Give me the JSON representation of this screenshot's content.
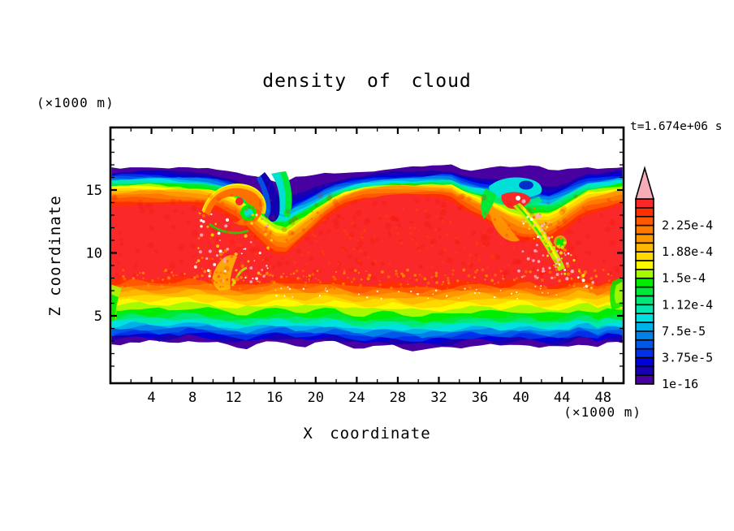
{
  "page": {
    "title": "density of cloud",
    "timestamp": "t=1.674e+06 s"
  },
  "axes": {
    "x_label": "X coordinate",
    "z_label": "Z coordinate",
    "x_unit": "(×1000 m)",
    "z_unit": "(×1000 m)"
  },
  "chart_data": {
    "type": "heatmap",
    "title": "density of cloud",
    "xlabel": "X coordinate",
    "ylabel": "Z coordinate",
    "x_unit": "(×1000 m)",
    "y_unit": "(×1000 m)",
    "time_annotation": "t=1.674e+06 s",
    "xlim": [
      0,
      50
    ],
    "ylim": [
      0,
      20
    ],
    "grid": false,
    "x_ticks": {
      "major": [
        4,
        8,
        12,
        16,
        20,
        24,
        28,
        32,
        36,
        40,
        44,
        48
      ],
      "minor": [
        2,
        6,
        10,
        14,
        18,
        22,
        26,
        30,
        34,
        38,
        42,
        46
      ]
    },
    "y_ticks": {
      "major": [
        5,
        10,
        15
      ],
      "minor": [
        1,
        2,
        3,
        4,
        6,
        7,
        8,
        9,
        11,
        12,
        13,
        14,
        16,
        17,
        18,
        19
      ]
    },
    "field_summary": {
      "description": "Filled contour field of cloud density: red core (>2.4e-4) spanning z≈5–16, rimmed by orange/yellow/green/cyan/blue bands, dark-violet edges (≈1e-16) at cloud base z≈3.5 and cloud top z≈17; breaking-wave vortex features near x≈17 and x≈41; white (no cloud) above z≈17 and below z≈3.5.",
      "cloud_top_z": 17,
      "cloud_base_z": 3.5,
      "vortex_x_positions": [
        17,
        41
      ]
    },
    "colorbar": {
      "n_cells": 21,
      "cell_step": 1.25e-05,
      "labels": [
        {
          "label": "1e-16",
          "at": 0
        },
        {
          "label": "3.75e-5",
          "at": 3
        },
        {
          "label": "7.5e-5",
          "at": 6
        },
        {
          "label": "1.12e-4",
          "at": 9
        },
        {
          "label": "1.5e-4",
          "at": 12
        },
        {
          "label": "1.88e-4",
          "at": 15
        },
        {
          "label": "2.25e-4",
          "at": 18
        }
      ],
      "cell_colors_bottom_to_top": [
        "#4800A0",
        "#1800B0",
        "#0000D8",
        "#0030E8",
        "#0058E8",
        "#0080E8",
        "#00B0E8",
        "#00E0E0",
        "#00E8B0",
        "#00E878",
        "#00E838",
        "#00EC00",
        "#A8F800",
        "#FFF800",
        "#FFD800",
        "#FFB800",
        "#FF9800",
        "#FF7800",
        "#FF5800",
        "#FF3000",
        "#FA2828"
      ],
      "overflow_color": "#F8ACB8",
      "frame_color": "#000000"
    }
  }
}
